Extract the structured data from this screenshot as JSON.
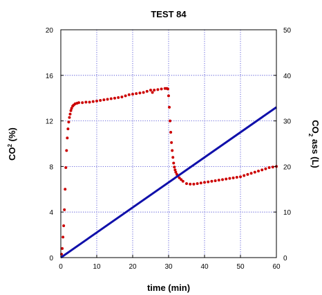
{
  "chart_data": {
    "type": "scatter",
    "title": "TEST 84",
    "xlabel": "time (min)",
    "ylabel_left": {
      "main": "CO",
      "sup": "2",
      "rest": " (%)"
    },
    "ylabel_right": {
      "main": "CO",
      "sub": "2",
      "rest": " ass (L)"
    },
    "xlim": [
      0,
      60
    ],
    "ylim_left": [
      0,
      20
    ],
    "ylim_right": [
      0,
      50
    ],
    "x_ticks": [
      "0",
      "10",
      "20",
      "30",
      "40",
      "50",
      "60"
    ],
    "y_left_ticks": [
      "0",
      "4",
      "8",
      "12",
      "16",
      "20"
    ],
    "y_right_ticks": [
      "0",
      "10",
      "20",
      "30",
      "40",
      "50"
    ],
    "grid": true,
    "series": [
      {
        "axis": "left",
        "color": "#cc0000",
        "style": "points",
        "x": [
          0.2,
          0.4,
          0.6,
          0.8,
          1.0,
          1.2,
          1.4,
          1.6,
          1.8,
          2.0,
          2.2,
          2.4,
          2.6,
          2.8,
          3.0,
          3.3,
          3.6,
          4.0,
          4.5,
          5.0,
          6,
          7,
          8,
          9,
          10,
          11,
          12,
          13,
          14,
          15,
          16,
          17,
          18,
          19,
          20,
          21,
          22,
          23,
          24,
          25,
          25.5,
          26,
          27,
          28,
          29,
          29.5,
          29.8,
          30.0,
          30.2,
          30.4,
          30.6,
          30.8,
          31.0,
          31.2,
          31.4,
          31.6,
          31.8,
          32.0,
          32.3,
          32.6,
          33.0,
          33.5,
          34,
          35,
          36,
          37,
          38,
          39,
          40,
          41,
          42,
          43,
          44,
          45,
          46,
          47,
          48,
          49,
          50,
          51,
          52,
          53,
          54,
          55,
          56,
          57,
          58,
          59,
          60
        ],
        "y": [
          0.3,
          0.8,
          1.8,
          2.8,
          4.2,
          6.0,
          7.9,
          9.4,
          10.5,
          11.3,
          11.9,
          12.3,
          12.6,
          12.9,
          13.1,
          13.3,
          13.4,
          13.5,
          13.55,
          13.6,
          13.6,
          13.65,
          13.65,
          13.7,
          13.75,
          13.8,
          13.85,
          13.9,
          13.95,
          14.0,
          14.05,
          14.1,
          14.2,
          14.3,
          14.35,
          14.4,
          14.45,
          14.5,
          14.6,
          14.7,
          14.5,
          14.7,
          14.75,
          14.8,
          14.85,
          14.85,
          14.8,
          14.2,
          13.2,
          12.0,
          11.0,
          10.1,
          9.4,
          8.8,
          8.3,
          7.95,
          7.7,
          7.5,
          7.3,
          7.15,
          7.0,
          6.85,
          6.7,
          6.5,
          6.45,
          6.45,
          6.5,
          6.55,
          6.6,
          6.65,
          6.7,
          6.75,
          6.8,
          6.85,
          6.9,
          6.95,
          7.0,
          7.05,
          7.1,
          7.2,
          7.3,
          7.4,
          7.5,
          7.6,
          7.7,
          7.8,
          7.9,
          7.95,
          8.0
        ]
      },
      {
        "axis": "right",
        "color": "#1010aa",
        "style": "thick-line",
        "x": [
          0,
          60
        ],
        "y": [
          0,
          33
        ]
      }
    ]
  }
}
